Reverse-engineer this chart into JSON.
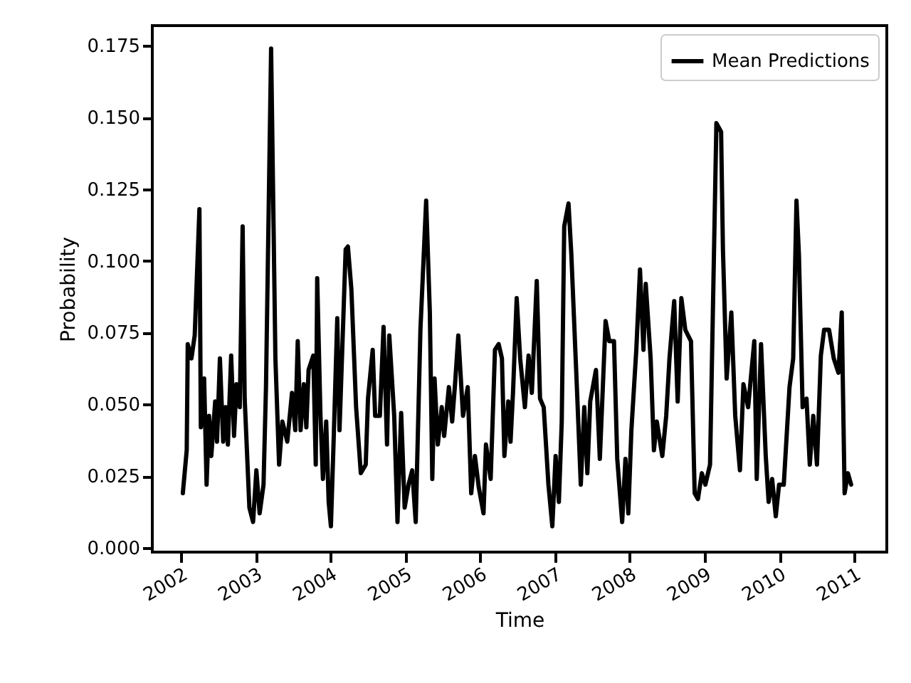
{
  "chart_data": {
    "type": "line",
    "xlabel": "Time",
    "ylabel": "Probability",
    "xlim": [
      "2001-08-14",
      "2011-06-09"
    ],
    "xticks": [
      "2002",
      "2003",
      "2004",
      "2005",
      "2006",
      "2007",
      "2008",
      "2009",
      "2010",
      "2011"
    ],
    "ylim": [
      -0.0015,
      0.182
    ],
    "yticks": [
      {
        "value": 0,
        "label": "0.000"
      },
      {
        "value": 0.025,
        "label": "0.025"
      },
      {
        "value": 0.05,
        "label": "0.050"
      },
      {
        "value": 0.075,
        "label": "0.075"
      },
      {
        "value": 0.1,
        "label": "0.100"
      },
      {
        "value": 0.125,
        "label": "0.125"
      },
      {
        "value": 0.15,
        "label": "0.150"
      },
      {
        "value": 0.175,
        "label": "0.175"
      }
    ],
    "grid": false,
    "legend": "top right",
    "marker": "none",
    "line_style": "solid",
    "x": [
      "2002-01-10",
      "2002-01-29",
      "2002-02-03",
      "2002-02-21",
      "2002-03-09",
      "2002-04-01",
      "2002-04-08",
      "2002-04-24",
      "2002-05-06",
      "2002-05-18",
      "2002-05-29",
      "2002-06-17",
      "2002-06-26",
      "2002-07-10",
      "2002-07-26",
      "2002-08-07",
      "2002-08-18",
      "2002-09-03",
      "2002-09-17",
      "2002-09-29",
      "2002-10-15",
      "2002-10-29",
      "2002-11-08",
      "2002-12-01",
      "2002-12-19",
      "2003-01-04",
      "2003-01-20",
      "2003-02-08",
      "2003-02-20",
      "2003-03-17",
      "2003-04-07",
      "2003-04-25",
      "2003-05-11",
      "2003-06-04",
      "2003-06-27",
      "2003-07-13",
      "2003-07-25",
      "2003-08-08",
      "2003-08-24",
      "2003-09-05",
      "2003-09-16",
      "2003-10-09",
      "2003-10-21",
      "2003-10-28",
      "2003-11-13",
      "2003-11-25",
      "2003-12-11",
      "2003-12-23",
      "2004-01-03",
      "2004-01-17",
      "2004-02-03",
      "2004-02-14",
      "2004-03-15",
      "2004-03-26",
      "2004-04-12",
      "2004-05-05",
      "2004-05-28",
      "2004-06-21",
      "2004-07-02",
      "2004-07-25",
      "2004-08-06",
      "2004-08-29",
      "2004-09-16",
      "2004-10-03",
      "2004-10-14",
      "2004-11-07",
      "2004-11-23",
      "2004-12-11",
      "2004-12-28",
      "2005-01-16",
      "2005-02-03",
      "2005-02-20",
      "2005-03-15",
      "2005-04-12",
      "2005-04-30",
      "2005-05-12",
      "2005-05-23",
      "2005-06-08",
      "2005-06-27",
      "2005-07-09",
      "2005-08-01",
      "2005-08-17",
      "2005-08-31",
      "2005-09-16",
      "2005-10-09",
      "2005-11-01",
      "2005-11-18",
      "2005-12-06",
      "2005-12-25",
      "2006-01-17",
      "2006-01-29",
      "2006-02-21",
      "2006-03-14",
      "2006-04-01",
      "2006-04-17",
      "2006-04-29",
      "2006-05-18",
      "2006-05-29",
      "2006-06-10",
      "2006-06-28",
      "2006-07-15",
      "2006-08-07",
      "2006-08-25",
      "2006-09-10",
      "2006-10-04",
      "2006-10-20",
      "2006-11-07",
      "2006-11-30",
      "2006-12-19",
      "2007-01-04",
      "2007-01-20",
      "2007-02-03",
      "2007-02-15",
      "2007-03-08",
      "2007-03-22",
      "2007-04-19",
      "2007-05-07",
      "2007-05-24",
      "2007-06-08",
      "2007-06-22",
      "2007-07-20",
      "2007-08-08",
      "2007-09-05",
      "2007-09-23",
      "2007-10-16",
      "2007-11-01",
      "2007-11-25",
      "2007-12-11",
      "2007-12-25",
      "2008-01-09",
      "2008-02-02",
      "2008-02-20",
      "2008-03-08",
      "2008-03-19",
      "2008-04-12",
      "2008-04-28",
      "2008-05-12",
      "2008-06-08",
      "2008-06-27",
      "2008-07-13",
      "2008-08-05",
      "2008-08-22",
      "2008-09-09",
      "2008-09-28",
      "2008-10-26",
      "2008-11-13",
      "2008-11-29",
      "2008-12-18",
      "2009-01-04",
      "2009-01-27",
      "2009-02-27",
      "2009-03-22",
      "2009-03-31",
      "2009-04-18",
      "2009-05-11",
      "2009-05-30",
      "2009-06-22",
      "2009-07-09",
      "2009-08-01",
      "2009-08-31",
      "2009-09-12",
      "2009-10-03",
      "2009-10-26",
      "2009-11-09",
      "2009-11-26",
      "2009-12-14",
      "2009-12-30",
      "2010-01-22",
      "2010-02-19",
      "2010-03-09",
      "2010-03-25",
      "2010-04-06",
      "2010-04-24",
      "2010-05-13",
      "2010-05-29",
      "2010-06-15",
      "2010-07-03",
      "2010-07-22",
      "2010-08-07",
      "2010-08-31",
      "2010-09-23",
      "2010-10-16",
      "2010-11-01",
      "2010-11-15",
      "2010-12-01",
      "2010-12-17"
    ],
    "series": [
      {
        "name": "Mean Predictions",
        "color": "#000000",
        "values": [
          0.019,
          0.034,
          0.071,
          0.066,
          0.074,
          0.118,
          0.042,
          0.059,
          0.022,
          0.046,
          0.032,
          0.051,
          0.037,
          0.066,
          0.037,
          0.049,
          0.036,
          0.067,
          0.039,
          0.057,
          0.049,
          0.112,
          0.052,
          0.014,
          0.009,
          0.027,
          0.012,
          0.022,
          0.056,
          0.174,
          0.066,
          0.029,
          0.044,
          0.037,
          0.054,
          0.041,
          0.072,
          0.041,
          0.057,
          0.042,
          0.062,
          0.067,
          0.029,
          0.094,
          0.046,
          0.024,
          0.044,
          0.016,
          0.0075,
          0.039,
          0.08,
          0.041,
          0.104,
          0.105,
          0.09,
          0.049,
          0.026,
          0.029,
          0.052,
          0.069,
          0.046,
          0.046,
          0.077,
          0.036,
          0.074,
          0.046,
          0.009,
          0.047,
          0.014,
          0.022,
          0.027,
          0.009,
          0.076,
          0.121,
          0.082,
          0.024,
          0.059,
          0.036,
          0.049,
          0.039,
          0.056,
          0.044,
          0.057,
          0.074,
          0.046,
          0.056,
          0.019,
          0.032,
          0.021,
          0.012,
          0.036,
          0.024,
          0.069,
          0.071,
          0.066,
          0.032,
          0.051,
          0.037,
          0.054,
          0.087,
          0.066,
          0.049,
          0.067,
          0.054,
          0.093,
          0.052,
          0.049,
          0.022,
          0.0075,
          0.032,
          0.016,
          0.044,
          0.112,
          0.12,
          0.102,
          0.054,
          0.022,
          0.049,
          0.026,
          0.051,
          0.062,
          0.031,
          0.079,
          0.072,
          0.072,
          0.031,
          0.009,
          0.031,
          0.012,
          0.041,
          0.069,
          0.097,
          0.069,
          0.092,
          0.066,
          0.034,
          0.044,
          0.032,
          0.046,
          0.066,
          0.086,
          0.051,
          0.087,
          0.076,
          0.072,
          0.019,
          0.017,
          0.026,
          0.022,
          0.029,
          0.148,
          0.145,
          0.104,
          0.059,
          0.082,
          0.046,
          0.027,
          0.057,
          0.049,
          0.072,
          0.024,
          0.071,
          0.032,
          0.016,
          0.024,
          0.011,
          0.022,
          0.022,
          0.056,
          0.066,
          0.121,
          0.102,
          0.049,
          0.052,
          0.029,
          0.046,
          0.029,
          0.067,
          0.076,
          0.076,
          0.066,
          0.061,
          0.082,
          0.019,
          0.026,
          0.022
        ]
      }
    ]
  }
}
